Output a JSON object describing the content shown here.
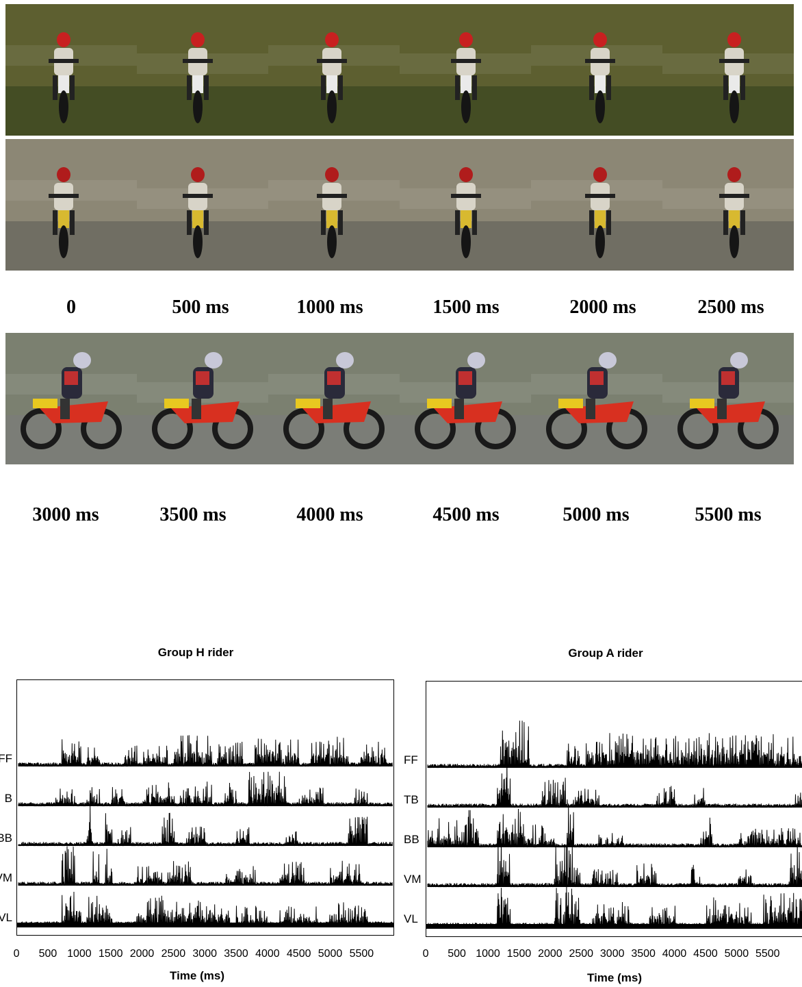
{
  "time_labels": [
    "0",
    "500 ms",
    "1000 ms",
    "1500 ms",
    "2000 ms",
    "2500 ms",
    "3000 ms",
    "3500 ms",
    "4000 ms",
    "4500 ms",
    "5000 ms",
    "5500 ms"
  ],
  "frame_rows": [
    {
      "name": "row-1",
      "bg": "#5d5f30",
      "ground": "#3f4a22",
      "rider_color": "#c82020",
      "bike_color": "#eaeaea",
      "view": "front"
    },
    {
      "name": "row-2",
      "bg": "#8c8775",
      "ground": "#6b6a60",
      "rider_color": "#b01c1c",
      "bike_color": "#d8b930",
      "view": "front"
    },
    {
      "name": "row-3",
      "bg": "#7b8070",
      "ground": "#7b7c78",
      "rider_color": "#c8c8d8",
      "bike_color": "#d83020",
      "view": "side"
    }
  ],
  "chart_data": [
    {
      "type": "line",
      "title": "Group H rider",
      "xlabel": "Time (ms)",
      "ylabel": "",
      "channels": [
        "FF",
        "TB",
        "BB",
        "VM",
        "VL"
      ],
      "channel_labels": [
        "FF",
        "B",
        "BB",
        "VM",
        "VL"
      ],
      "xticks": [
        "0",
        "500",
        "1000",
        "1500",
        "2000",
        "2500",
        "3000",
        "3500",
        "4000",
        "4500",
        "5000",
        "5500"
      ],
      "xlim": [
        0,
        6000
      ],
      "bursts": [
        [
          [
            700,
            1000,
            0.6
          ],
          [
            1100,
            1300,
            0.5
          ],
          [
            1700,
            1900,
            0.5
          ],
          [
            2000,
            2400,
            0.5
          ],
          [
            2500,
            3100,
            0.7
          ],
          [
            3200,
            3600,
            0.5
          ],
          [
            3800,
            4500,
            0.6
          ],
          [
            4700,
            5300,
            0.6
          ],
          [
            5500,
            5900,
            0.5
          ]
        ],
        [
          [
            600,
            900,
            0.4
          ],
          [
            1100,
            1300,
            0.4
          ],
          [
            1500,
            1700,
            0.4
          ],
          [
            2000,
            2500,
            0.5
          ],
          [
            2600,
            3100,
            0.5
          ],
          [
            3300,
            3500,
            0.5
          ],
          [
            3700,
            4300,
            0.7
          ],
          [
            4500,
            4900,
            0.4
          ],
          [
            5400,
            5600,
            0.4
          ]
        ],
        [
          [
            1100,
            1200,
            0.9
          ],
          [
            1400,
            1500,
            0.9
          ],
          [
            1600,
            1800,
            0.4
          ],
          [
            2300,
            2500,
            0.7
          ],
          [
            2700,
            3000,
            0.4
          ],
          [
            3500,
            3700,
            0.4
          ],
          [
            4300,
            4500,
            0.3
          ],
          [
            5300,
            5600,
            0.6
          ]
        ],
        [
          [
            700,
            900,
            0.8
          ],
          [
            1200,
            1300,
            0.7
          ],
          [
            1400,
            1500,
            0.9
          ],
          [
            1900,
            2300,
            0.4
          ],
          [
            2400,
            2800,
            0.5
          ],
          [
            3300,
            3800,
            0.4
          ],
          [
            4200,
            4600,
            0.5
          ],
          [
            5000,
            5500,
            0.5
          ]
        ],
        [
          [
            700,
            1000,
            0.7
          ],
          [
            1100,
            1300,
            0.6
          ],
          [
            1300,
            1500,
            0.6
          ],
          [
            1900,
            2500,
            0.6
          ],
          [
            2500,
            3400,
            0.5
          ],
          [
            3500,
            4000,
            0.4
          ],
          [
            4200,
            4800,
            0.4
          ],
          [
            5000,
            5600,
            0.5
          ]
        ]
      ]
    },
    {
      "type": "line",
      "title": "Group A rider",
      "xlabel": "Time (ms)",
      "ylabel": "",
      "channels": [
        "FF",
        "TB",
        "BB",
        "VM",
        "VL"
      ],
      "channel_labels": [
        "FF",
        "TB",
        "BB",
        "VM",
        "VL"
      ],
      "xticks": [
        "0",
        "500",
        "1000",
        "1500",
        "2000",
        "2500",
        "3000",
        "3500",
        "4000",
        "4500",
        "5000",
        "5500"
      ],
      "xlim": [
        0,
        6000
      ],
      "bursts": [
        [
          [
            1150,
            1600,
            1.0
          ],
          [
            2200,
            2400,
            0.5
          ],
          [
            2500,
            5900,
            0.7
          ]
        ],
        [
          [
            1100,
            1300,
            1.0
          ],
          [
            1800,
            2200,
            0.6
          ],
          [
            2300,
            2700,
            0.4
          ],
          [
            3600,
            3900,
            0.5
          ],
          [
            4200,
            4400,
            0.4
          ],
          [
            5800,
            5900,
            0.5
          ]
        ],
        [
          [
            0,
            500,
            0.6
          ],
          [
            500,
            800,
            0.8
          ],
          [
            1100,
            1500,
            0.8
          ],
          [
            1500,
            2000,
            0.5
          ],
          [
            2200,
            2300,
            0.9
          ],
          [
            2700,
            3100,
            0.3
          ],
          [
            4300,
            4500,
            0.6
          ],
          [
            4900,
            5900,
            0.4
          ]
        ],
        [
          [
            1100,
            1300,
            1.0
          ],
          [
            2000,
            2400,
            0.9
          ],
          [
            2600,
            3000,
            0.4
          ],
          [
            3300,
            3600,
            0.5
          ],
          [
            4100,
            4300,
            0.5
          ],
          [
            4900,
            5100,
            0.5
          ],
          [
            5700,
            5900,
            0.9
          ]
        ],
        [
          [
            1100,
            1300,
            1.0
          ],
          [
            2000,
            2400,
            0.9
          ],
          [
            2600,
            3200,
            0.5
          ],
          [
            3500,
            3900,
            0.5
          ],
          [
            4400,
            5100,
            0.6
          ],
          [
            5300,
            5900,
            0.7
          ]
        ]
      ]
    }
  ]
}
